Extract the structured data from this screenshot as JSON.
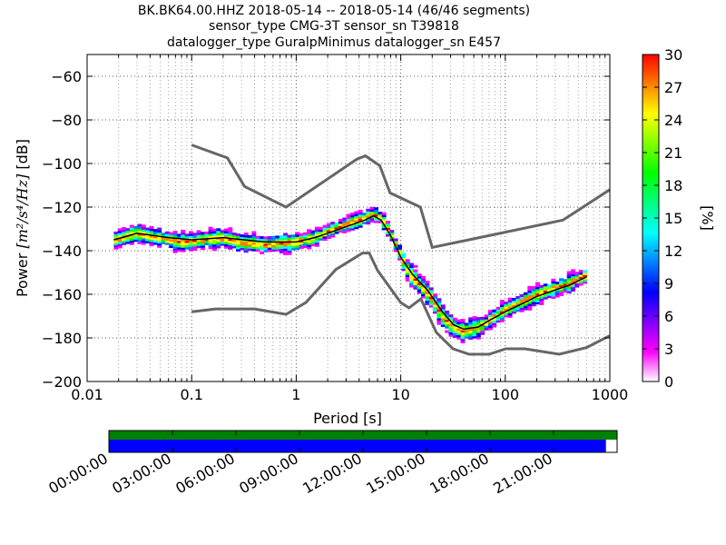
{
  "header": {
    "title_line1": "BK.BK64.00.HHZ   2018-05-14 -- 2018-05-14  (46/46 segments)",
    "title_line2": "sensor_type CMG-3T sensor_sn T39818",
    "title_line3": "datalogger_type GuralpMinimus datalogger_sn E457"
  },
  "chart_data": {
    "type": "heatmap",
    "xlabel": "Period [s]",
    "ylabel_prefix": "Power ",
    "ylabel_unit": "[m²/s⁴/Hz]",
    "ylabel_suffix": " [dB]",
    "x_scale": "log",
    "xlim": [
      0.01,
      1000
    ],
    "ylim": [
      -200,
      -50
    ],
    "x_ticks": [
      0.01,
      0.1,
      1,
      10,
      100,
      1000
    ],
    "x_tick_labels": [
      "0.01",
      "0.1",
      "1",
      "10",
      "100",
      "1000"
    ],
    "y_ticks": [
      -200,
      -180,
      -160,
      -140,
      -120,
      -100,
      -80,
      -60
    ],
    "y_tick_labels": [
      "−200",
      "−180",
      "−160",
      "−140",
      "−120",
      "−100",
      "−80",
      "−60"
    ],
    "grid": "dotted",
    "colorbar": {
      "label": "[%]",
      "range": [
        0,
        30
      ],
      "ticks": [
        0,
        3,
        6,
        9,
        12,
        15,
        18,
        21,
        24,
        27,
        30
      ],
      "tick_labels": [
        "0",
        "3",
        "6",
        "9",
        "12",
        "15",
        "18",
        "21",
        "24",
        "27",
        "30"
      ],
      "colormap": [
        "#ffffff",
        "#ff00ff",
        "#8000ff",
        "#0000ff",
        "#0080ff",
        "#00ffff",
        "#00ff80",
        "#00ff00",
        "#80ff00",
        "#ffff00",
        "#ff8000",
        "#ff0000"
      ]
    },
    "density_band": [
      [
        0.018,
        -135
      ],
      [
        0.025,
        -133
      ],
      [
        0.03,
        -132
      ],
      [
        0.05,
        -134
      ],
      [
        0.08,
        -136
      ],
      [
        0.12,
        -135
      ],
      [
        0.2,
        -134
      ],
      [
        0.3,
        -136
      ],
      [
        0.5,
        -137
      ],
      [
        1,
        -136
      ],
      [
        1.5,
        -134
      ],
      [
        2,
        -131
      ],
      [
        3,
        -128
      ],
      [
        4.5,
        -125
      ],
      [
        5.5,
        -123
      ],
      [
        6.5,
        -125
      ],
      [
        8,
        -132
      ],
      [
        10,
        -142
      ],
      [
        12,
        -150
      ],
      [
        15,
        -155
      ],
      [
        20,
        -162
      ],
      [
        25,
        -170
      ],
      [
        32,
        -175
      ],
      [
        40,
        -177
      ],
      [
        55,
        -175
      ],
      [
        70,
        -172
      ],
      [
        100,
        -167
      ],
      [
        150,
        -163
      ],
      [
        200,
        -160
      ],
      [
        300,
        -157
      ],
      [
        400,
        -155
      ],
      [
        600,
        -151
      ]
    ],
    "median": [
      [
        0.018,
        -135
      ],
      [
        0.03,
        -132
      ],
      [
        0.06,
        -134
      ],
      [
        0.1,
        -135
      ],
      [
        0.2,
        -134
      ],
      [
        0.5,
        -136
      ],
      [
        1,
        -136
      ],
      [
        1.5,
        -134
      ],
      [
        2,
        -132
      ],
      [
        3,
        -129
      ],
      [
        4.5,
        -126
      ],
      [
        5.5,
        -124
      ],
      [
        6.5,
        -126
      ],
      [
        8,
        -133
      ],
      [
        10,
        -143
      ],
      [
        13,
        -151
      ],
      [
        18,
        -158
      ],
      [
        25,
        -168
      ],
      [
        32,
        -174
      ],
      [
        40,
        -176
      ],
      [
        55,
        -175
      ],
      [
        70,
        -172
      ],
      [
        100,
        -168
      ],
      [
        150,
        -164
      ],
      [
        200,
        -161
      ],
      [
        300,
        -158
      ],
      [
        400,
        -156
      ],
      [
        600,
        -152
      ]
    ],
    "nhnm": [
      [
        0.1,
        -91.5
      ],
      [
        0.22,
        -97.4
      ],
      [
        0.32,
        -110.5
      ],
      [
        0.8,
        -120
      ],
      [
        3.8,
        -98
      ],
      [
        4.6,
        -96.5
      ],
      [
        6.3,
        -101
      ],
      [
        7.9,
        -113.5
      ],
      [
        15.4,
        -120
      ],
      [
        20,
        -138.5
      ],
      [
        354.8,
        -126
      ],
      [
        1000,
        -112
      ]
    ],
    "nlnm": [
      [
        0.1,
        -168
      ],
      [
        0.17,
        -166.7
      ],
      [
        0.4,
        -166.7
      ],
      [
        0.8,
        -169.2
      ],
      [
        1.24,
        -163.7
      ],
      [
        2.4,
        -148.6
      ],
      [
        4.3,
        -141.1
      ],
      [
        5,
        -141.1
      ],
      [
        6,
        -149
      ],
      [
        10,
        -163.8
      ],
      [
        12,
        -166.2
      ],
      [
        15.6,
        -162.1
      ],
      [
        21.9,
        -177.5
      ],
      [
        31.6,
        -185
      ],
      [
        45,
        -187.5
      ],
      [
        70,
        -187.5
      ],
      [
        101,
        -185
      ],
      [
        154,
        -185
      ],
      [
        328,
        -187.5
      ],
      [
        600,
        -184.4
      ],
      [
        1000,
        -179
      ]
    ],
    "timeline": {
      "ticks": [
        "00:00:00",
        "03:00:00",
        "06:00:00",
        "09:00:00",
        "12:00:00",
        "15:00:00",
        "18:00:00",
        "21:00:00"
      ],
      "coverage_fraction": 0.978,
      "colors": {
        "data": "#008000",
        "psd": "#0000ff"
      }
    }
  }
}
